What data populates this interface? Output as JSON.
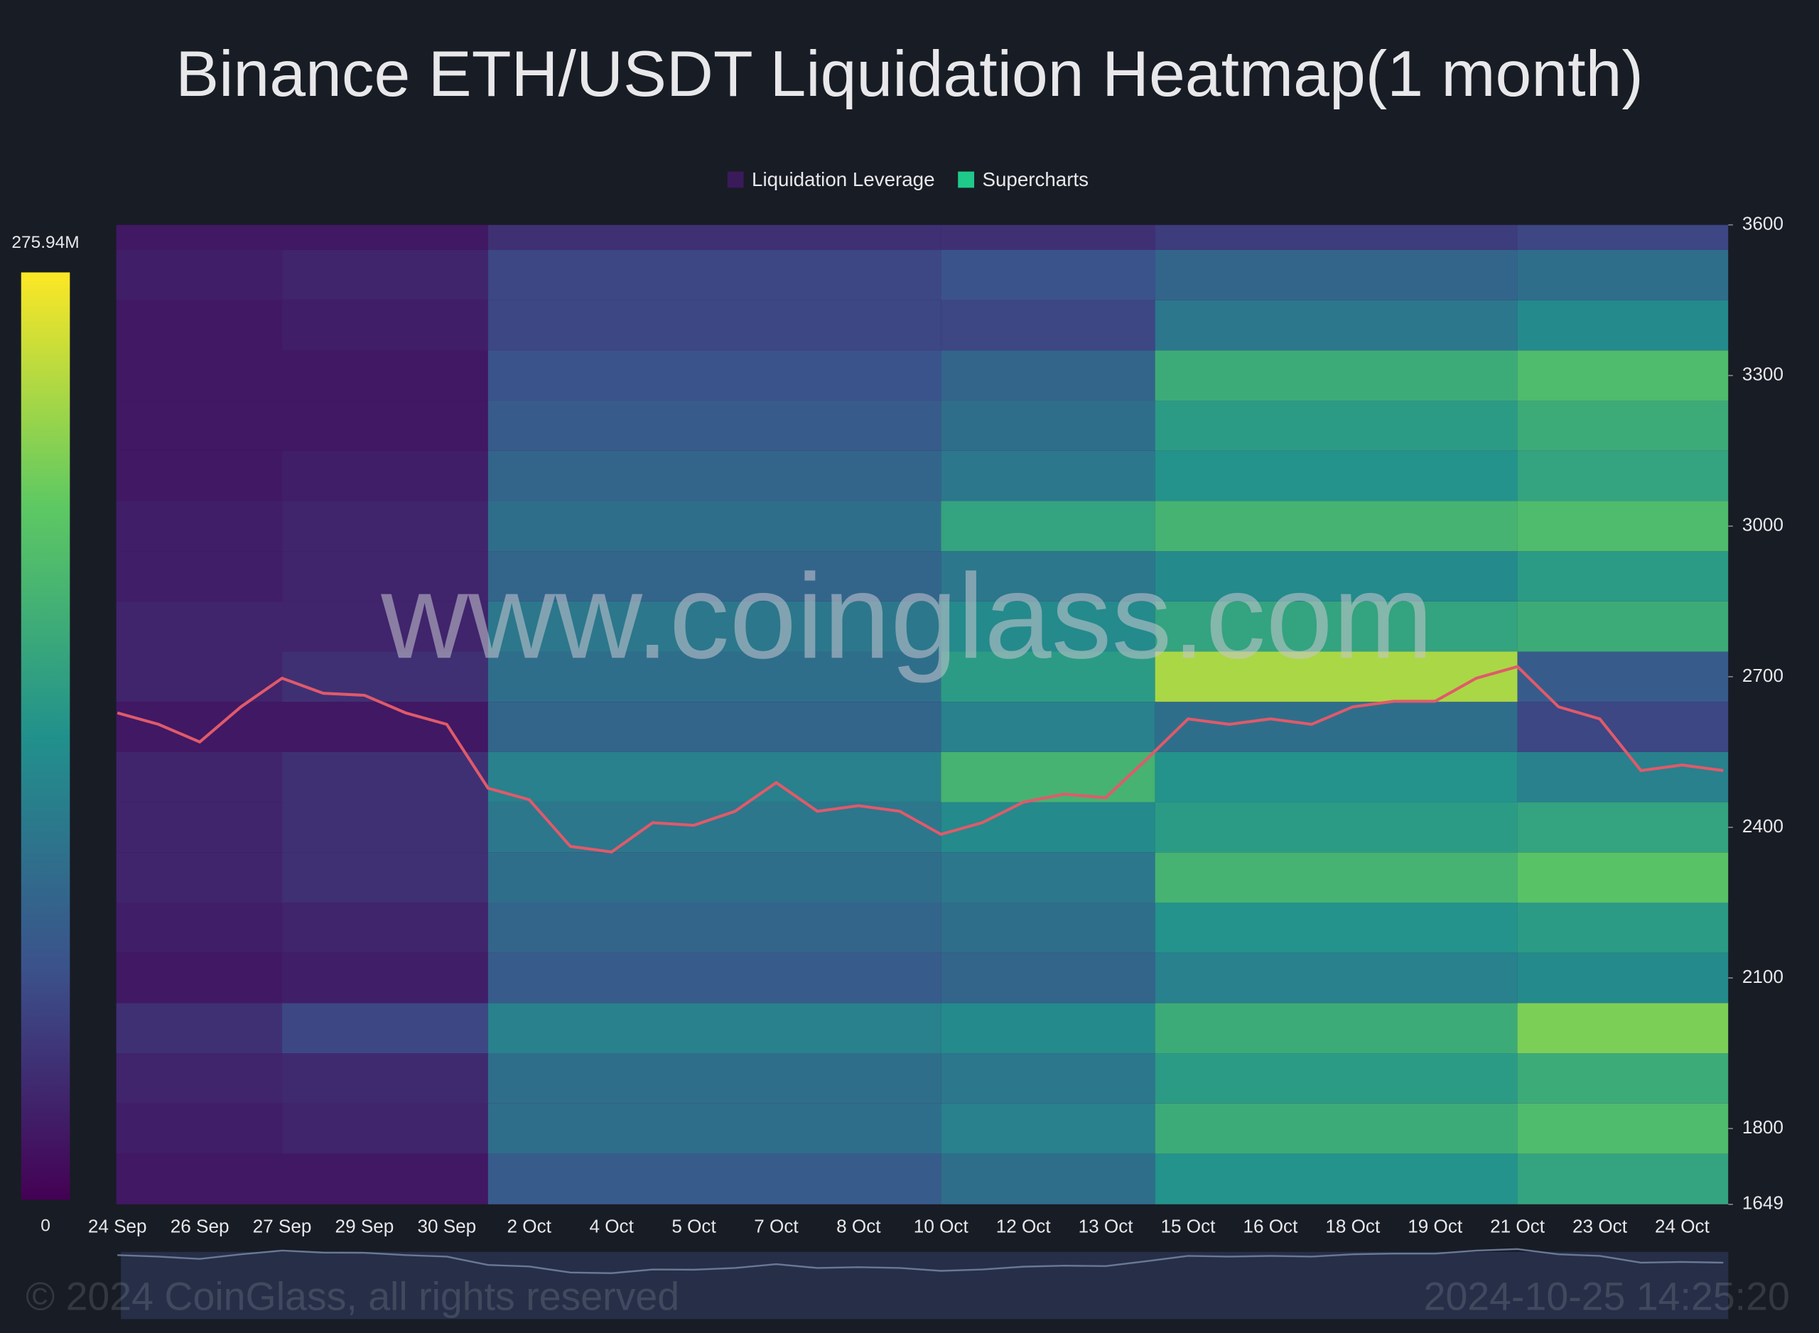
{
  "chart_data": {
    "type": "heatmap",
    "title": "Binance ETH/USDT Liquidation Heatmap(1 month)",
    "legend": [
      {
        "name": "Liquidation Leverage",
        "color": "#3b1a5a"
      },
      {
        "name": "Supercharts",
        "color": "#1fc98a"
      }
    ],
    "categories": [
      "24 Sep",
      "26 Sep",
      "27 Sep",
      "29 Sep",
      "30 Sep",
      "2 Oct",
      "4 Oct",
      "5 Oct",
      "7 Oct",
      "8 Oct",
      "10 Oct",
      "12 Oct",
      "13 Oct",
      "15 Oct",
      "16 Oct",
      "18 Oct",
      "19 Oct",
      "21 Oct",
      "23 Oct",
      "24 Oct"
    ],
    "xlim": [
      0,
      19.56
    ],
    "ylim": [
      1649,
      3600
    ],
    "yticks": [
      1649,
      1800,
      2100,
      2400,
      2700,
      3000,
      3300,
      3600
    ],
    "clim": [
      0,
      275.94
    ],
    "cticks": [
      0,
      {
        "value": 275.94,
        "label": "275.94M"
      }
    ],
    "x_bins": [
      0,
      2,
      4.5,
      10,
      12.6,
      17,
      19.56
    ],
    "y_bins": [
      1649,
      1750,
      1850,
      1950,
      2050,
      2150,
      2250,
      2350,
      2450,
      2550,
      2650,
      2750,
      2850,
      2950,
      3050,
      3150,
      3250,
      3350,
      3450,
      3550,
      3600
    ],
    "z": [
      [
        20,
        20,
        80,
        100,
        140,
        160
      ],
      [
        25,
        30,
        100,
        120,
        170,
        190
      ],
      [
        30,
        35,
        100,
        110,
        150,
        170
      ],
      [
        40,
        60,
        120,
        130,
        170,
        220
      ],
      [
        20,
        25,
        80,
        90,
        120,
        130
      ],
      [
        25,
        30,
        90,
        100,
        140,
        150
      ],
      [
        30,
        40,
        100,
        110,
        180,
        200
      ],
      [
        30,
        40,
        110,
        130,
        150,
        160
      ],
      [
        30,
        40,
        120,
        180,
        140,
        120
      ],
      [
        20,
        20,
        90,
        120,
        100,
        60
      ],
      [
        30,
        40,
        100,
        150,
        240,
        80
      ],
      [
        30,
        30,
        110,
        130,
        160,
        170
      ],
      [
        25,
        30,
        90,
        110,
        130,
        150
      ],
      [
        25,
        30,
        100,
        160,
        180,
        190
      ],
      [
        20,
        25,
        90,
        110,
        140,
        160
      ],
      [
        20,
        20,
        80,
        100,
        150,
        170
      ],
      [
        20,
        20,
        70,
        90,
        170,
        190
      ],
      [
        20,
        25,
        60,
        60,
        110,
        130
      ],
      [
        25,
        30,
        60,
        70,
        90,
        100
      ],
      [
        20,
        20,
        40,
        40,
        50,
        60
      ]
    ],
    "price": {
      "x": [
        0,
        0.5,
        1,
        1.5,
        2,
        2.5,
        3,
        3.5,
        4,
        4.5,
        5,
        5.5,
        6,
        6.5,
        7,
        7.5,
        8,
        8.5,
        9,
        9.5,
        10,
        10.5,
        11,
        11.5,
        12,
        12.5,
        13,
        13.5,
        14,
        14.5,
        15,
        15.5,
        16,
        16.5,
        17,
        17.5,
        18,
        18.5,
        19,
        19.5
      ],
      "values": [
        2628,
        2605,
        2570,
        2640,
        2697,
        2667,
        2663,
        2628,
        2605,
        2478,
        2455,
        2362,
        2351,
        2409,
        2404,
        2432,
        2489,
        2432,
        2443,
        2432,
        2386,
        2409,
        2450,
        2466,
        2459,
        2536,
        2616,
        2605,
        2616,
        2605,
        2640,
        2651,
        2651,
        2697,
        2720,
        2640,
        2616,
        2513,
        2524,
        2513
      ]
    },
    "watermark": "www.coinglass.com",
    "copyright": "© 2024 CoinGlass, all rights reserved",
    "timestamp": "2024-10-25 14:25:20"
  }
}
